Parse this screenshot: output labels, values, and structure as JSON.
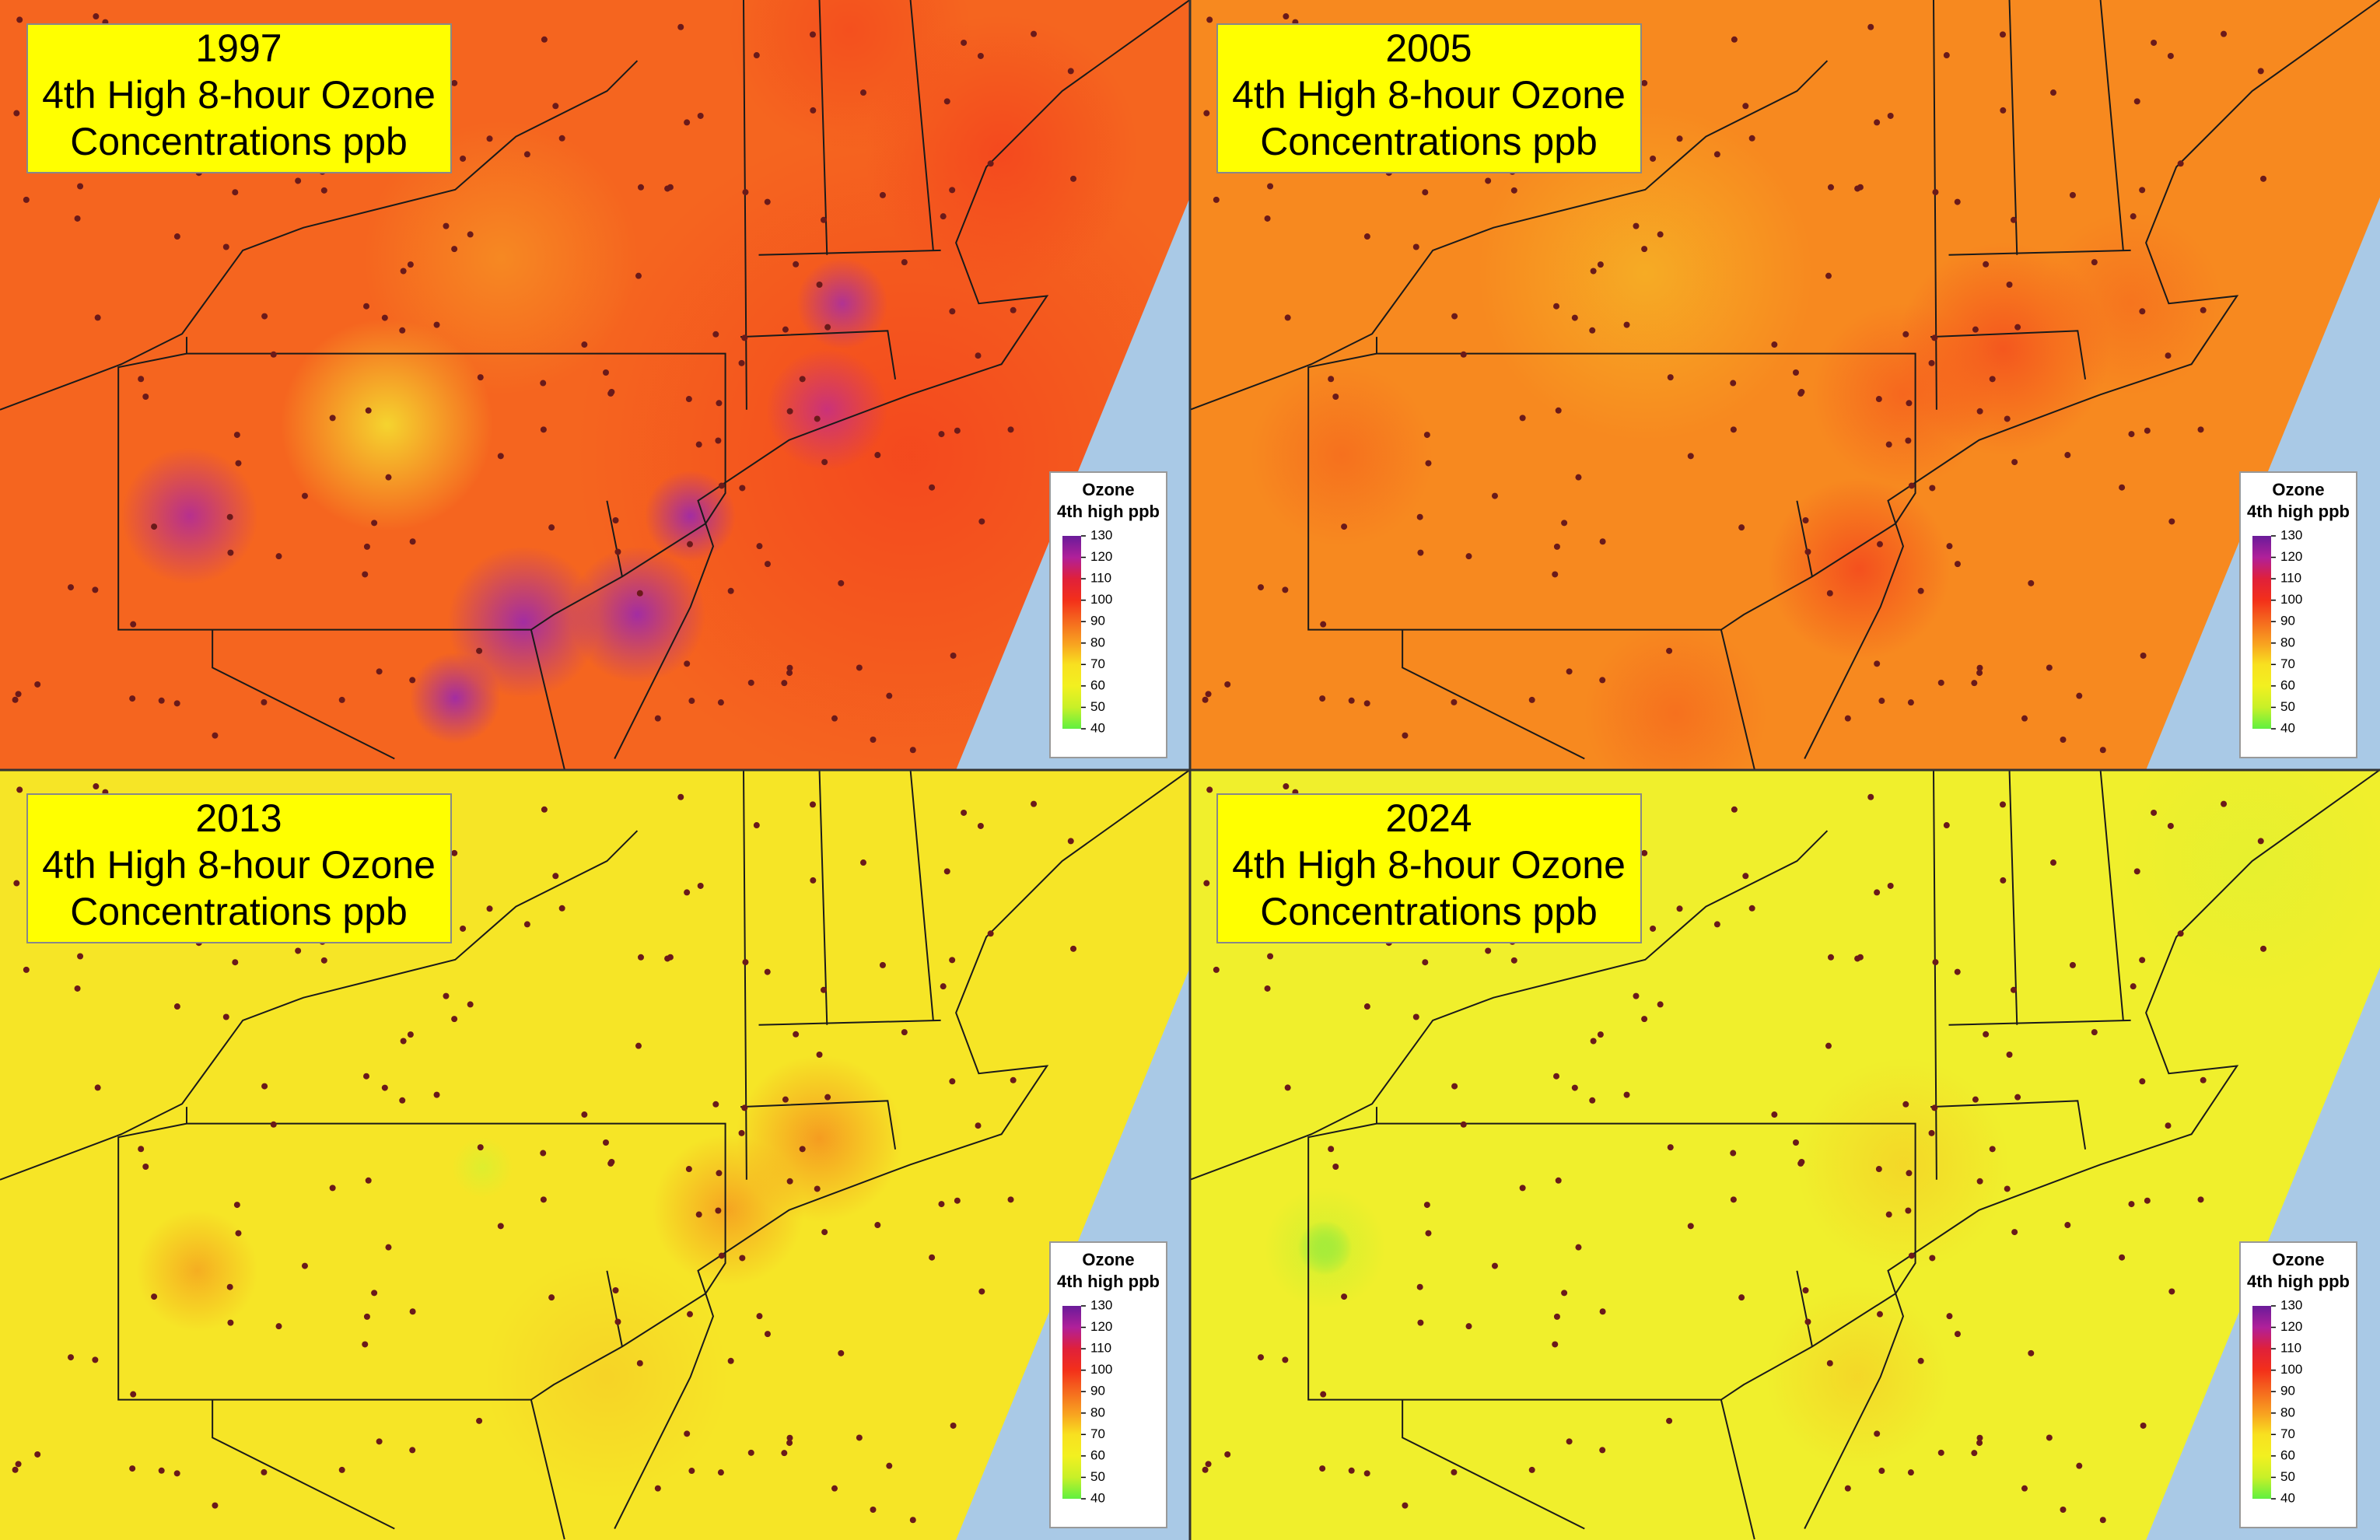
{
  "panels": [
    {
      "year": "1997",
      "line2": "4th High 8-hour Ozone",
      "line3": "Concentrations ppb",
      "color": "#f5651f"
    },
    {
      "year": "2005",
      "line2": "4th High 8-hour Ozone",
      "line3": "Concentrations ppb",
      "color": "#f7891f"
    },
    {
      "year": "2013",
      "line2": "4th High 8-hour Ozone",
      "line3": "Concentrations ppb",
      "color": "#f6e526"
    },
    {
      "year": "2024",
      "line2": "4th High 8-hour Ozone",
      "line3": "Concentrations ppb",
      "color": "#f0ef2c"
    }
  ],
  "legend": {
    "title": "Ozone",
    "subtitle": "4th high ppb",
    "clim": [
      40,
      130
    ],
    "ticks": [
      130,
      120,
      110,
      100,
      90,
      80,
      70,
      60,
      50,
      40
    ]
  }
}
